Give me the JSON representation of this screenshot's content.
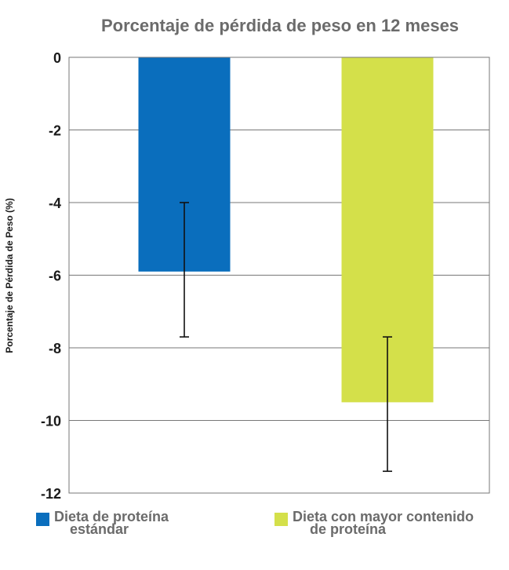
{
  "chart_data": {
    "type": "bar",
    "title": "Porcentaje de pérdida de peso en 12 meses",
    "ylabel": "Porcentaje de Pérdida de Peso (%)",
    "xlabel": "",
    "ylim": [
      -12,
      0
    ],
    "yticks": [
      0,
      -2,
      -4,
      -6,
      -8,
      -10,
      -12
    ],
    "grid": true,
    "legend_position": "bottom",
    "categories": [
      "Dieta de proteína estándar",
      "Dieta con mayor contenido de proteína"
    ],
    "legend": [
      {
        "lines": [
          "Dieta de proteína",
          "estándar"
        ],
        "color": "#0a6ebd"
      },
      {
        "lines": [
          "Dieta con mayor contenido",
          "de proteína"
        ],
        "color": "#d4e04a"
      }
    ],
    "values": [
      -5.9,
      -9.5
    ],
    "error_bars": [
      {
        "low": -7.7,
        "high": -4.0
      },
      {
        "low": -11.4,
        "high": -7.7
      }
    ]
  }
}
